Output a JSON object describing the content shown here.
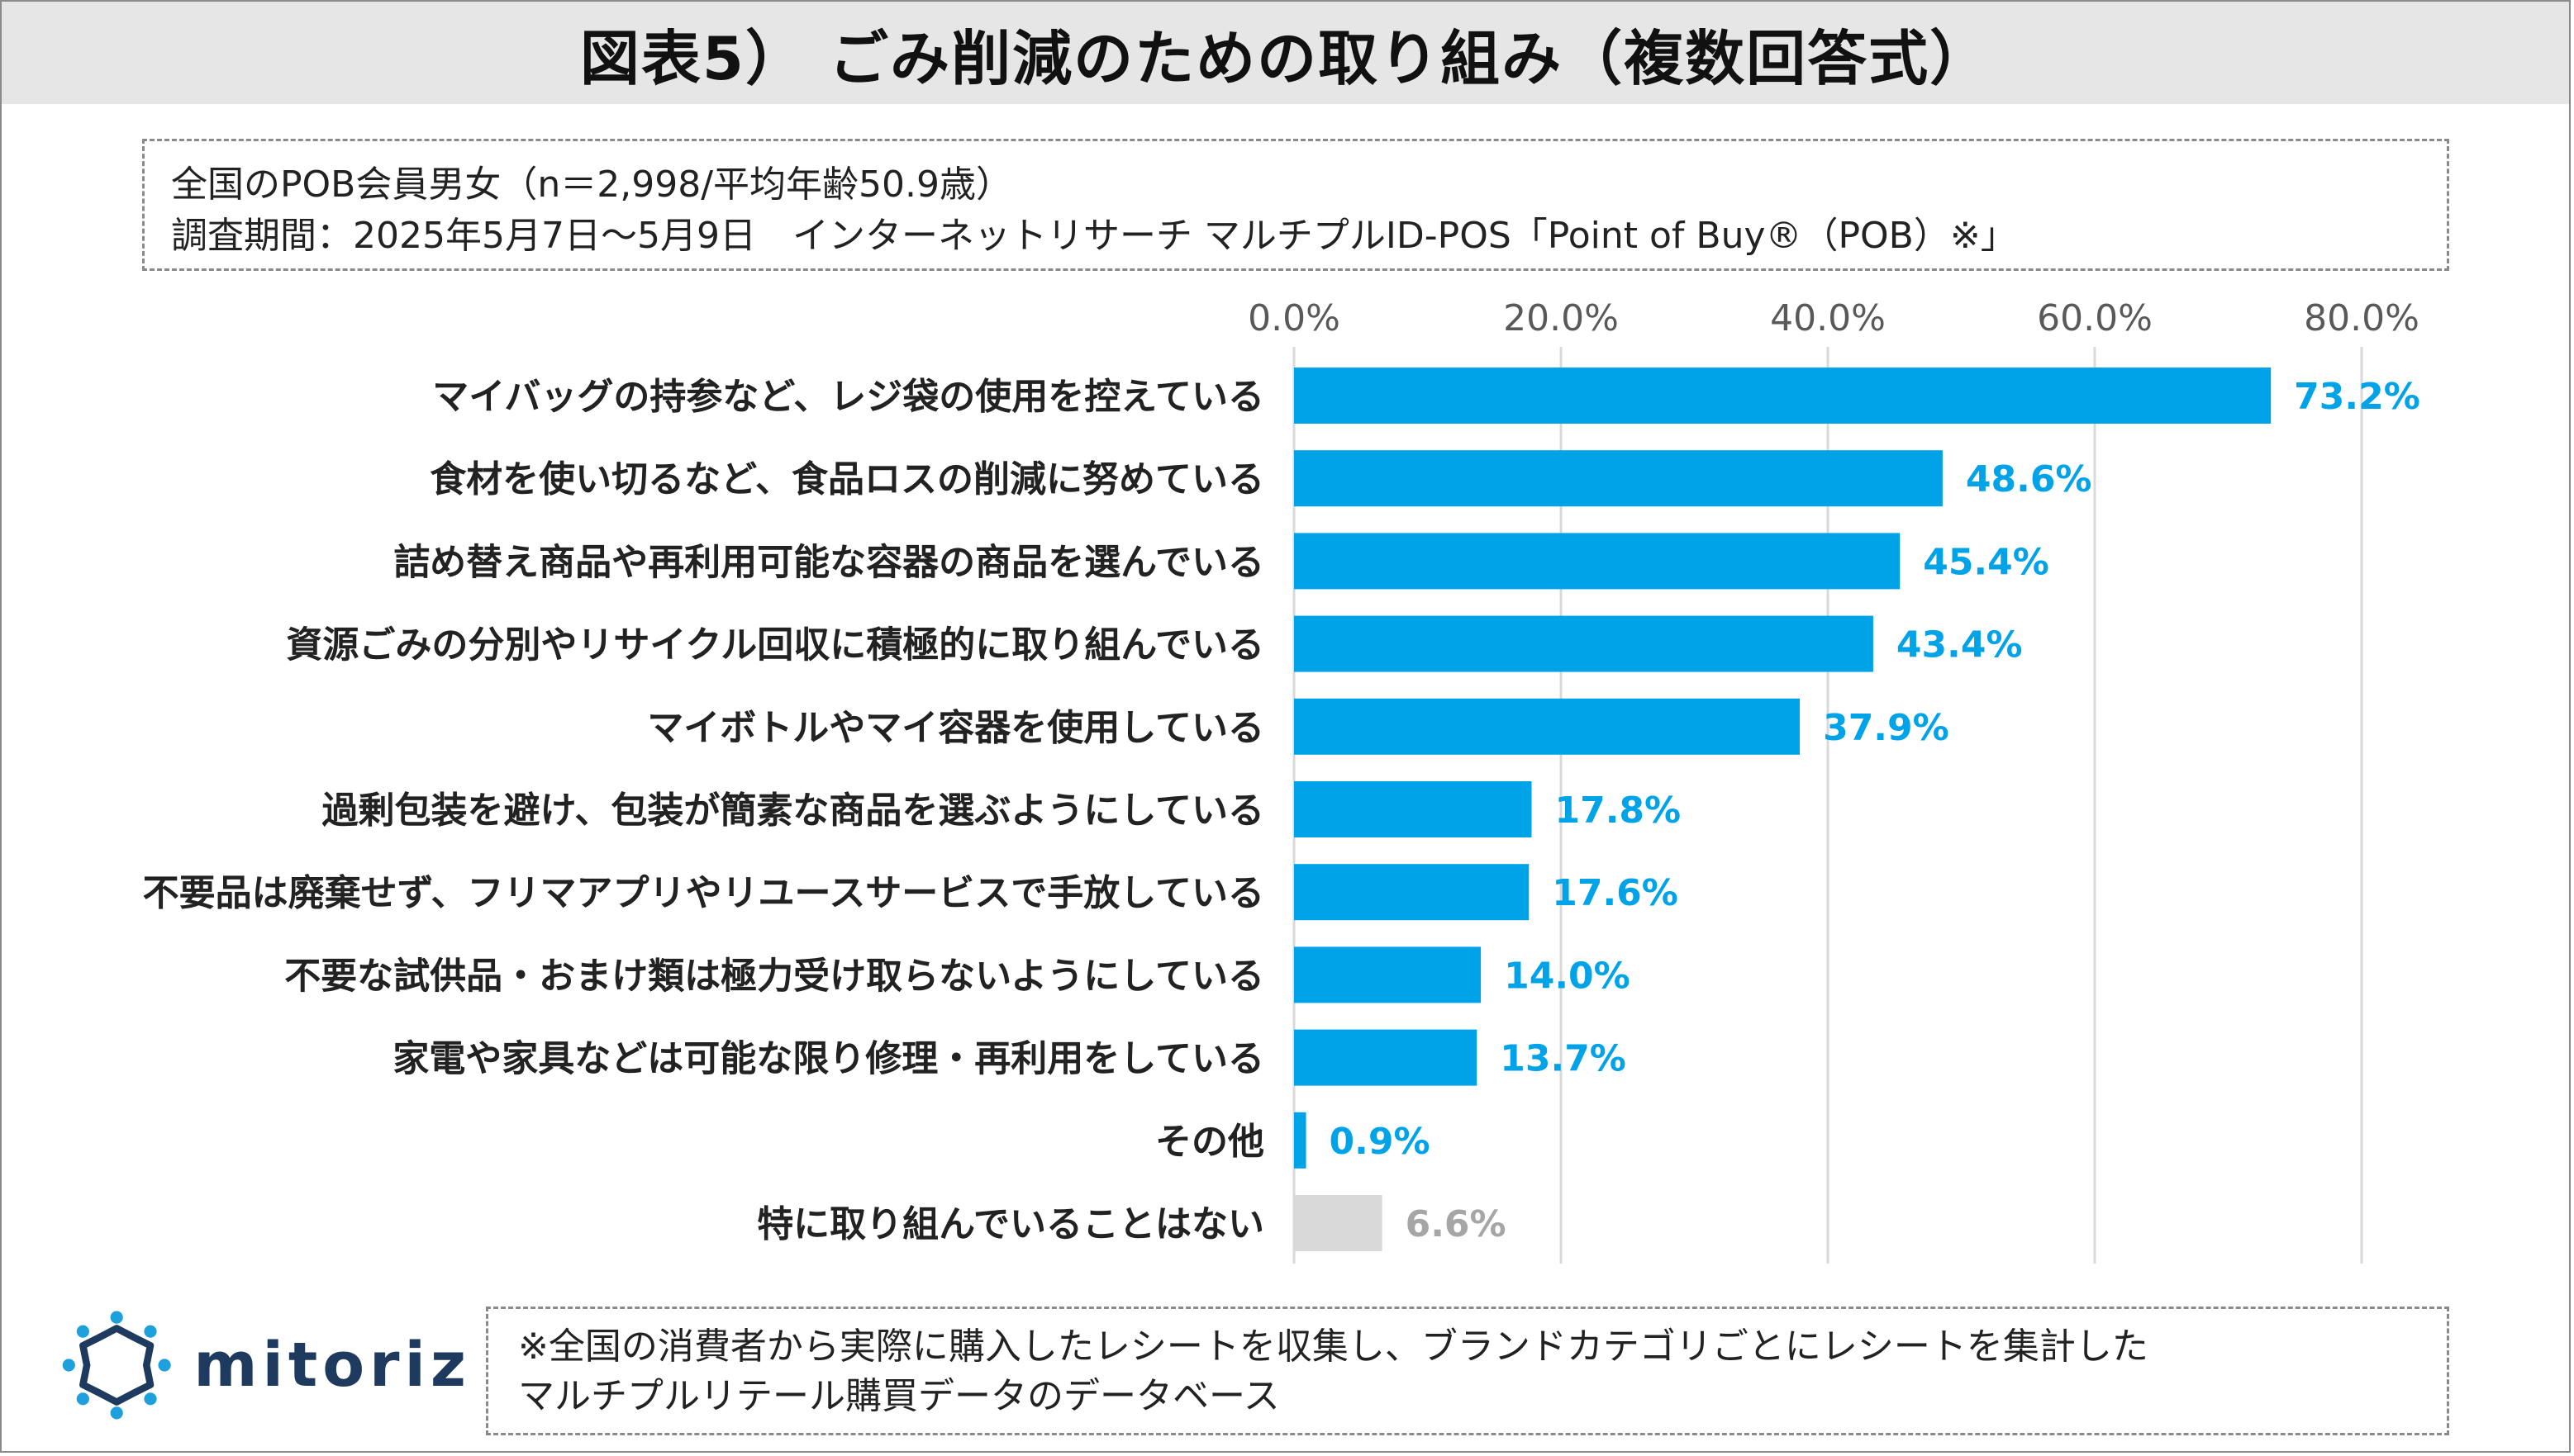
{
  "title": "図表5） ごみ削減のための取り組み（複数回答式）",
  "info": {
    "line1": "全国のPOB会員男女（n＝2,998/平均年齢50.9歳）",
    "line2": "調査期間：2025年5月7日～5月9日　インターネットリサーチ マルチプルID-POS「Point of Buy®（POB）※」"
  },
  "footnote": {
    "line1": "※全国の消費者から実際に購入したレシートを収集し、ブランドカテゴリごとにレシートを集計した",
    "line2": "マルチプルリテール購買データのデータベース"
  },
  "logo": {
    "text": "mitoriz"
  },
  "colors": {
    "bar": "#00a3e8",
    "bar_gray": "#d9d9d9",
    "label_blue": "#00a3e8",
    "label_gray": "#a6a6a6",
    "grid": "#d9d9d9",
    "logo_dark": "#1e3a5f",
    "logo_light": "#1ea0dc"
  },
  "chart_data": {
    "type": "bar",
    "orientation": "horizontal",
    "title": "図表5） ごみ削減のための取り組み（複数回答式）",
    "xlim": [
      0,
      80
    ],
    "ticks": [
      "0.0%",
      "20.0%",
      "40.0%",
      "60.0%",
      "80.0%"
    ],
    "tick_values": [
      0,
      20,
      40,
      60,
      80
    ],
    "grid": true,
    "categories": [
      "マイバッグの持参など、レジ袋の使用を控えている",
      "食材を使い切るなど、食品ロスの削減に努めている",
      "詰め替え商品や再利用可能な容器の商品を選んでいる",
      "資源ごみの分別やリサイクル回収に積極的に取り組んでいる",
      "マイボトルやマイ容器を使用している",
      "過剰包装を避け、包装が簡素な商品を選ぶようにしている",
      "不要品は廃棄せず、フリマアプリやリユースサービスで手放している",
      "不要な試供品・おまけ類は極力受け取らないようにしている",
      "家電や家具などは可能な限り修理・再利用をしている",
      "その他",
      "特に取り組んでいることはない"
    ],
    "values": [
      73.2,
      48.6,
      45.4,
      43.4,
      37.9,
      17.8,
      17.6,
      14.0,
      13.7,
      0.9,
      6.6
    ],
    "value_labels": [
      "73.2%",
      "48.6%",
      "45.4%",
      "43.4%",
      "37.9%",
      "17.8%",
      "17.6%",
      "14.0%",
      "13.7%",
      "0.9%",
      "6.6%"
    ],
    "highlight_gray_index": 10
  }
}
